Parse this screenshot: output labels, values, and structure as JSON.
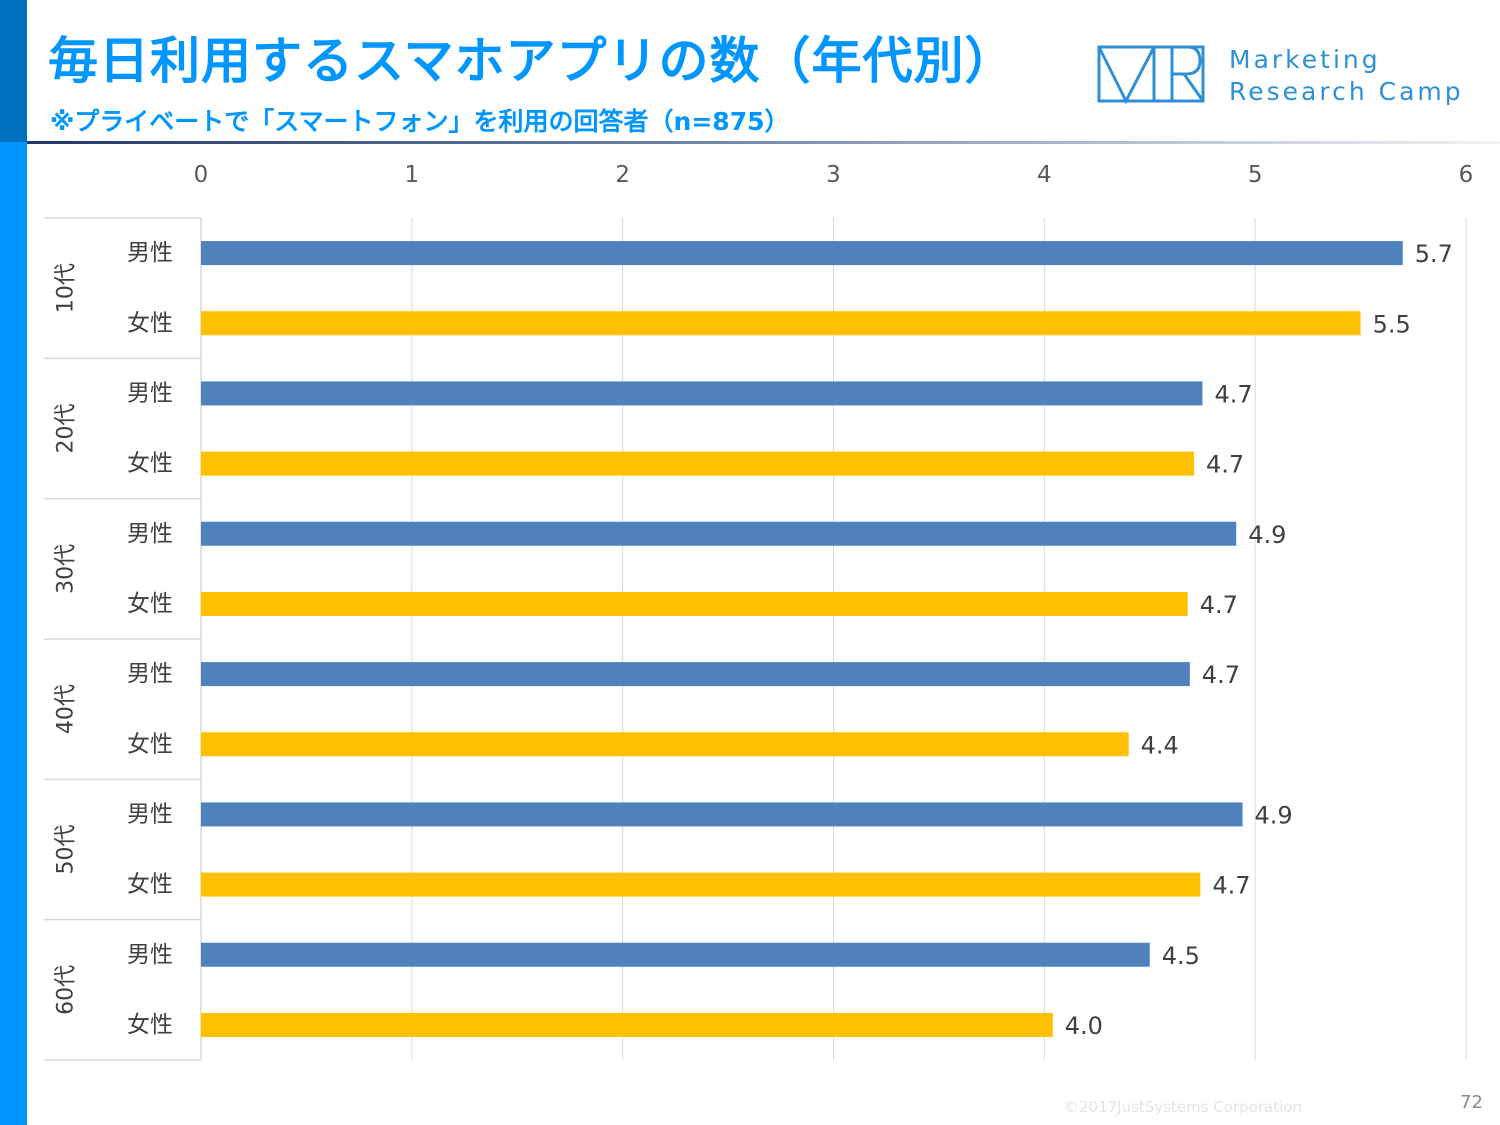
{
  "header": {
    "title": "毎日利用するスマホアプリの数（年代別）",
    "subtitle": "※プライベートで「スマートフォン」を利用の回答者（n=875）"
  },
  "logo": {
    "mark": "MR",
    "line1": "Marketing",
    "line2": "Research Camp"
  },
  "footer": {
    "copyright": "©2017JustSystems Corporation",
    "page": "72"
  },
  "colors": {
    "accent": "#0096ff",
    "male": "#4f81bd",
    "female": "#ffc000",
    "grid": "#d9d9d9"
  },
  "chart_data": {
    "type": "bar",
    "orientation": "horizontal",
    "xlim": [
      0,
      6
    ],
    "x_ticks": [
      "0",
      "1",
      "2",
      "3",
      "4",
      "5",
      "6"
    ],
    "x_axis_position": "top",
    "grid": true,
    "legend": "none",
    "groups": [
      {
        "label": "10代",
        "bars": [
          {
            "label": "男性",
            "value": 5.7,
            "value_label": "5.7"
          },
          {
            "label": "女性",
            "value": 5.5,
            "value_label": "5.5"
          }
        ]
      },
      {
        "label": "20代",
        "bars": [
          {
            "label": "男性",
            "value": 4.75,
            "value_label": "4.7"
          },
          {
            "label": "女性",
            "value": 4.71,
            "value_label": "4.7"
          }
        ]
      },
      {
        "label": "30代",
        "bars": [
          {
            "label": "男性",
            "value": 4.91,
            "value_label": "4.9"
          },
          {
            "label": "女性",
            "value": 4.68,
            "value_label": "4.7"
          }
        ]
      },
      {
        "label": "40代",
        "bars": [
          {
            "label": "男性",
            "value": 4.69,
            "value_label": "4.7"
          },
          {
            "label": "女性",
            "value": 4.4,
            "value_label": "4.4"
          }
        ]
      },
      {
        "label": "50代",
        "bars": [
          {
            "label": "男性",
            "value": 4.94,
            "value_label": "4.9"
          },
          {
            "label": "女性",
            "value": 4.74,
            "value_label": "4.7"
          }
        ]
      },
      {
        "label": "60代",
        "bars": [
          {
            "label": "男性",
            "value": 4.5,
            "value_label": "4.5"
          },
          {
            "label": "女性",
            "value": 4.04,
            "value_label": "4.0"
          }
        ]
      }
    ]
  }
}
